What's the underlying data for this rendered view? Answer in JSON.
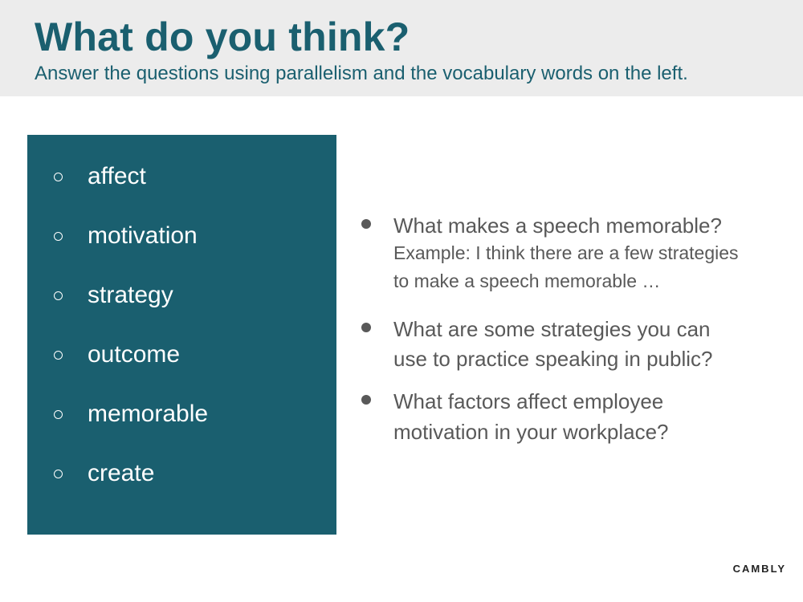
{
  "header": {
    "title": "What do you think?",
    "subtitle": "Answer the questions using parallelism and the vocabulary words on the left."
  },
  "vocabulary": {
    "words": [
      "affect",
      "motivation",
      "strategy",
      "outcome",
      "memorable",
      "create"
    ]
  },
  "questions": [
    {
      "text": "What makes a speech memorable?",
      "example_lines": [
        "Example: I think there are a few strategies",
        "to make a speech memorable …"
      ]
    },
    {
      "lines": [
        "What are some strategies you can",
        "use to practice speaking in public?"
      ]
    },
    {
      "lines": [
        "What factors affect employee",
        "motivation in your workplace?"
      ]
    }
  ],
  "brand": {
    "name": "CAMBLY"
  },
  "colors": {
    "accent": "#1a5f6f",
    "header_bg": "#ececec",
    "body_text": "#595959"
  }
}
